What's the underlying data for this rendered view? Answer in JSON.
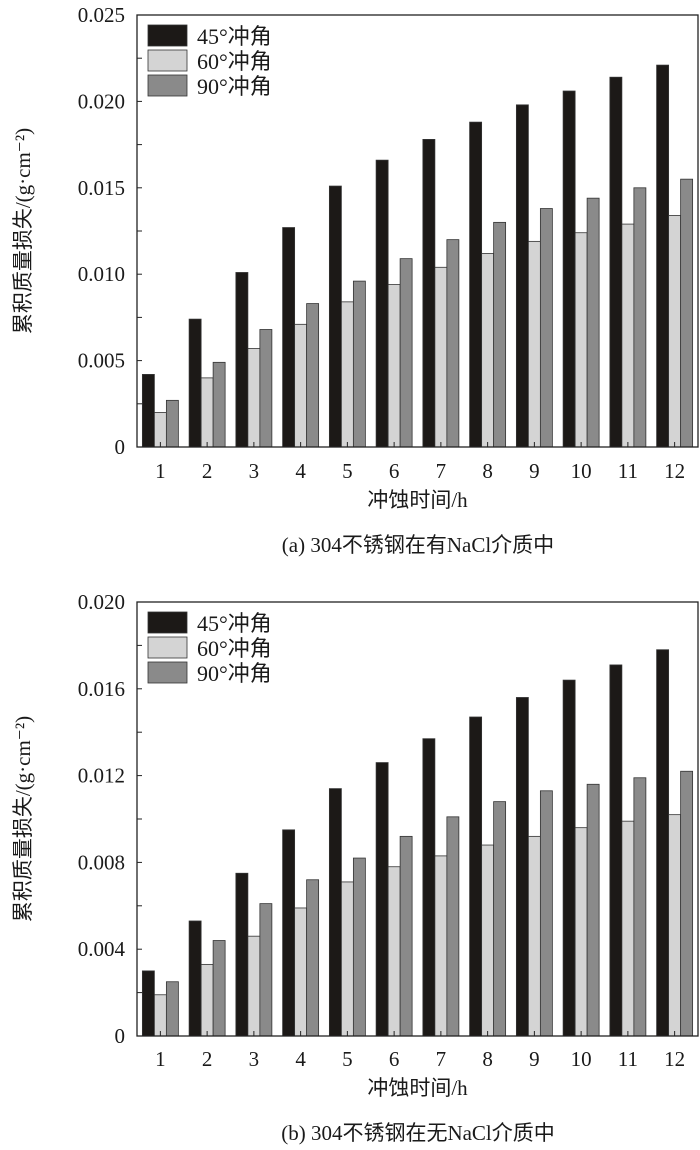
{
  "colors": {
    "s45": "#1c1917",
    "s60": "#d4d4d4",
    "s90": "#8a8a8a",
    "frame": "#222222"
  },
  "chart_data": [
    {
      "type": "bar",
      "caption": "(a) 304不锈钢在有NaCl介质中",
      "xlabel": "冲蚀时间/h",
      "ylabel": "累积质量损失/(g·cm⁻²)",
      "ylim": [
        0,
        0.025
      ],
      "yticks": [
        "0",
        "0.005",
        "0.010",
        "0.015",
        "0.020",
        "0.025"
      ],
      "ytick_values": [
        0,
        0.005,
        0.01,
        0.015,
        0.02,
        0.025
      ],
      "minor_step": 0.0025,
      "legend_position": "top-left",
      "categories": [
        "1",
        "2",
        "3",
        "4",
        "5",
        "6",
        "7",
        "8",
        "9",
        "10",
        "11",
        "12"
      ],
      "series": [
        {
          "name": "45°冲角",
          "color_key": "s45",
          "values": [
            0.0042,
            0.0074,
            0.0101,
            0.0127,
            0.0151,
            0.0166,
            0.0178,
            0.0188,
            0.0198,
            0.0206,
            0.0214,
            0.0221
          ]
        },
        {
          "name": "60°冲角",
          "color_key": "s60",
          "values": [
            0.002,
            0.004,
            0.0057,
            0.0071,
            0.0084,
            0.0094,
            0.0104,
            0.0112,
            0.0119,
            0.0124,
            0.0129,
            0.0134
          ]
        },
        {
          "name": "90°冲角",
          "color_key": "s90",
          "values": [
            0.0027,
            0.0049,
            0.0068,
            0.0083,
            0.0096,
            0.0109,
            0.012,
            0.013,
            0.0138,
            0.0144,
            0.015,
            0.0155
          ]
        }
      ]
    },
    {
      "type": "bar",
      "caption": "(b) 304不锈钢在无NaCl介质中",
      "xlabel": "冲蚀时间/h",
      "ylabel": "累积质量损失/(g·cm⁻²)",
      "ylim": [
        0,
        0.02
      ],
      "yticks": [
        "0",
        "0.004",
        "0.008",
        "0.012",
        "0.016",
        "0.020"
      ],
      "ytick_values": [
        0,
        0.004,
        0.008,
        0.012,
        0.016,
        0.02
      ],
      "minor_step": 0.002,
      "legend_position": "top-left",
      "categories": [
        "1",
        "2",
        "3",
        "4",
        "5",
        "6",
        "7",
        "8",
        "9",
        "10",
        "11",
        "12"
      ],
      "series": [
        {
          "name": "45°冲角",
          "color_key": "s45",
          "values": [
            0.003,
            0.0053,
            0.0075,
            0.0095,
            0.0114,
            0.0126,
            0.0137,
            0.0147,
            0.0156,
            0.0164,
            0.0171,
            0.0178
          ]
        },
        {
          "name": "60°冲角",
          "color_key": "s60",
          "values": [
            0.0019,
            0.0033,
            0.0046,
            0.0059,
            0.0071,
            0.0078,
            0.0083,
            0.0088,
            0.0092,
            0.0096,
            0.0099,
            0.0102
          ]
        },
        {
          "name": "90°冲角",
          "color_key": "s90",
          "values": [
            0.0025,
            0.0044,
            0.0061,
            0.0072,
            0.0082,
            0.0092,
            0.0101,
            0.0108,
            0.0113,
            0.0116,
            0.0119,
            0.0122
          ]
        }
      ]
    }
  ]
}
